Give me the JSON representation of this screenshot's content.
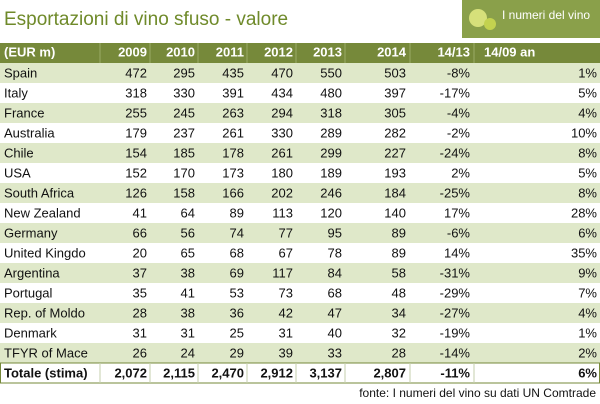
{
  "title": "Esportazioni di vino sfuso - valore",
  "logo": "I numeri del vino",
  "table": {
    "header": [
      "(EUR m)",
      "2009",
      "2010",
      "2011",
      "2012",
      "2013",
      "2014",
      "14/13",
      "14/09 an"
    ],
    "rows": [
      [
        "Spain",
        "472",
        "295",
        "435",
        "470",
        "550",
        "503",
        "-8%",
        "1%"
      ],
      [
        "Italy",
        "318",
        "330",
        "391",
        "434",
        "480",
        "397",
        "-17%",
        "5%"
      ],
      [
        "France",
        "255",
        "245",
        "263",
        "294",
        "318",
        "305",
        "-4%",
        "4%"
      ],
      [
        "Australia",
        "179",
        "237",
        "261",
        "330",
        "289",
        "282",
        "-2%",
        "10%"
      ],
      [
        "Chile",
        "154",
        "185",
        "178",
        "261",
        "299",
        "227",
        "-24%",
        "8%"
      ],
      [
        "USA",
        "152",
        "170",
        "173",
        "180",
        "189",
        "193",
        "2%",
        "5%"
      ],
      [
        "South Africa",
        "126",
        "158",
        "166",
        "202",
        "246",
        "184",
        "-25%",
        "8%"
      ],
      [
        "New Zealand",
        "41",
        "64",
        "89",
        "113",
        "120",
        "140",
        "17%",
        "28%"
      ],
      [
        "Germany",
        "66",
        "56",
        "74",
        "77",
        "95",
        "89",
        "-6%",
        "6%"
      ],
      [
        "United Kingdo",
        "20",
        "65",
        "68",
        "67",
        "78",
        "89",
        "14%",
        "35%"
      ],
      [
        "Argentina",
        "37",
        "38",
        "69",
        "117",
        "84",
        "58",
        "-31%",
        "9%"
      ],
      [
        "Portugal",
        "35",
        "41",
        "53",
        "73",
        "68",
        "48",
        "-29%",
        "7%"
      ],
      [
        "Rep. of Moldo",
        "28",
        "38",
        "36",
        "42",
        "47",
        "34",
        "-27%",
        "4%"
      ],
      [
        "Denmark",
        "31",
        "31",
        "25",
        "31",
        "40",
        "32",
        "-19%",
        "1%"
      ],
      [
        "TFYR of Mace",
        "26",
        "24",
        "29",
        "39",
        "33",
        "28",
        "-14%",
        "2%"
      ]
    ],
    "total": [
      "Totale (stima)",
      "2,072",
      "2,115",
      "2,470",
      "2,912",
      "3,137",
      "2,807",
      "-11%",
      "6%"
    ]
  },
  "source": "fonte: I numeri del vino su dati UN Comtrade"
}
